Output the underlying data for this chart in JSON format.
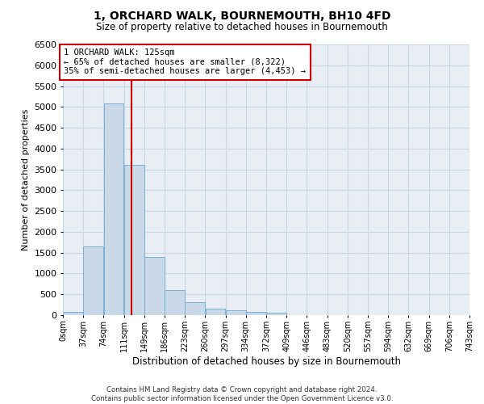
{
  "title": "1, ORCHARD WALK, BOURNEMOUTH, BH10 4FD",
  "subtitle": "Size of property relative to detached houses in Bournemouth",
  "xlabel": "Distribution of detached houses by size in Bournemouth",
  "ylabel": "Number of detached properties",
  "footer_line1": "Contains HM Land Registry data © Crown copyright and database right 2024.",
  "footer_line2": "Contains public sector information licensed under the Open Government Licence v3.0.",
  "bar_color": "#c9d9e8",
  "bar_edge_color": "#6fa8d0",
  "grid_color": "#c8d8e8",
  "background_color": "#e8eef4",
  "property_sqm": 125,
  "property_label": "1 ORCHARD WALK: 125sqm",
  "annotation_line1": "← 65% of detached houses are smaller (8,322)",
  "annotation_line2": "35% of semi-detached houses are larger (4,453) →",
  "annotation_box_color": "#ffffff",
  "annotation_box_edge": "#cc0000",
  "vline_color": "#cc0000",
  "bin_labels": [
    "0sqm",
    "37sqm",
    "74sqm",
    "111sqm",
    "149sqm",
    "186sqm",
    "223sqm",
    "260sqm",
    "297sqm",
    "334sqm",
    "372sqm",
    "409sqm",
    "446sqm",
    "483sqm",
    "520sqm",
    "557sqm",
    "594sqm",
    "632sqm",
    "669sqm",
    "706sqm",
    "743sqm"
  ],
  "bin_edges_sqm": [
    0,
    37,
    74,
    111,
    148,
    185,
    222,
    259,
    296,
    333,
    370,
    407,
    444,
    481,
    518,
    555,
    592,
    629,
    666,
    703,
    740
  ],
  "bar_heights": [
    70,
    1650,
    5080,
    3600,
    1400,
    600,
    310,
    160,
    120,
    70,
    50,
    0,
    0,
    0,
    0,
    0,
    0,
    0,
    0,
    0
  ],
  "ylim": [
    0,
    6500
  ],
  "yticks": [
    0,
    500,
    1000,
    1500,
    2000,
    2500,
    3000,
    3500,
    4000,
    4500,
    5000,
    5500,
    6000,
    6500
  ]
}
